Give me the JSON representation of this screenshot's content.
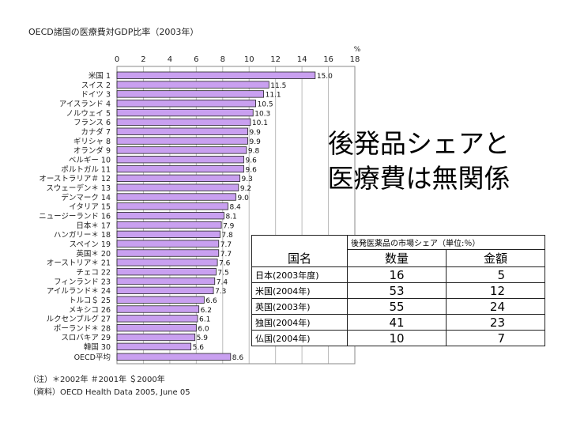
{
  "title": "OECD諸国の医療費対GDP比率（2003年）",
  "headline": [
    "後発品シェアと",
    "医療費は無関係"
  ],
  "notes": [
    "（注）＊2002年 ＃2001年 ＄2000年",
    "（資料）OECD Health Data 2005, June 05"
  ],
  "chart_data": {
    "type": "bar",
    "orientation": "horizontal",
    "xlim": [
      0,
      18
    ],
    "unit": "%",
    "ticks": [
      "0",
      "2",
      "4",
      "6",
      "8",
      "10",
      "12",
      "14",
      "16",
      "18"
    ],
    "bar_color": "#c9a0f0",
    "categories": [
      "米国 1",
      "スイス 2",
      "ドイツ 3",
      "アイスランド 4",
      "ノルウェイ 5",
      "フランス 6",
      "カナダ 7",
      "ギリシャ 8",
      "オランダ 9",
      "ベルギー 10",
      "ポルトガル 11",
      "オーストラリア＃ 12",
      "スウェーデン＊ 13",
      "デンマーク 14",
      "イタリア 15",
      "ニュージーランド 16",
      "日本＊ 17",
      "ハンガリー＊ 18",
      "スペイン 19",
      "英国＊ 20",
      "オーストリア＊ 21",
      "チェコ 22",
      "フィンランド 23",
      "アイルランド＊ 24",
      "トルコ＄ 25",
      "メキシコ 26",
      "ルクセンブルグ 27",
      "ポーランド＊ 28",
      "スロバキア 29",
      "韓国 30",
      "OECD平均"
    ],
    "values": [
      15.0,
      11.5,
      11.1,
      10.5,
      10.3,
      10.1,
      9.9,
      9.9,
      9.8,
      9.6,
      9.6,
      9.3,
      9.2,
      9.0,
      8.4,
      8.1,
      7.9,
      7.8,
      7.7,
      7.7,
      7.6,
      7.5,
      7.4,
      7.3,
      6.6,
      6.2,
      6.1,
      6.0,
      5.9,
      5.6,
      8.6
    ],
    "value_labels": [
      "15.0",
      "11.5",
      "11.1",
      "10.5",
      "10.3",
      "10.1",
      "9.9",
      "9.9",
      "9.8",
      "9.6",
      "9.6",
      "9.3",
      "9.2",
      "9.0",
      "8.4",
      "8.1",
      "7.9",
      "7.8",
      "7.7",
      "7.7",
      "7.6",
      "7.5",
      "7.4",
      "7.3",
      "6.6",
      "6.2",
      "6.1",
      "6.0",
      "5.9",
      "5.6",
      "8.6"
    ]
  },
  "table": {
    "col_name": "国名",
    "group_header": "後発医薬品の市場シェア（単位:％）",
    "col_volume": "数量",
    "col_value": "金額",
    "rows": [
      {
        "name": "日本(2003年度)",
        "volume": "16",
        "value": "5"
      },
      {
        "name": "米国(2004年)",
        "volume": "53",
        "value": "12"
      },
      {
        "name": "英国(2003年)",
        "volume": "55",
        "value": "24"
      },
      {
        "name": "独国(2004年)",
        "volume": "41",
        "value": "23"
      },
      {
        "name": "仏国(2004年)",
        "volume": "10",
        "value": "7"
      }
    ]
  }
}
